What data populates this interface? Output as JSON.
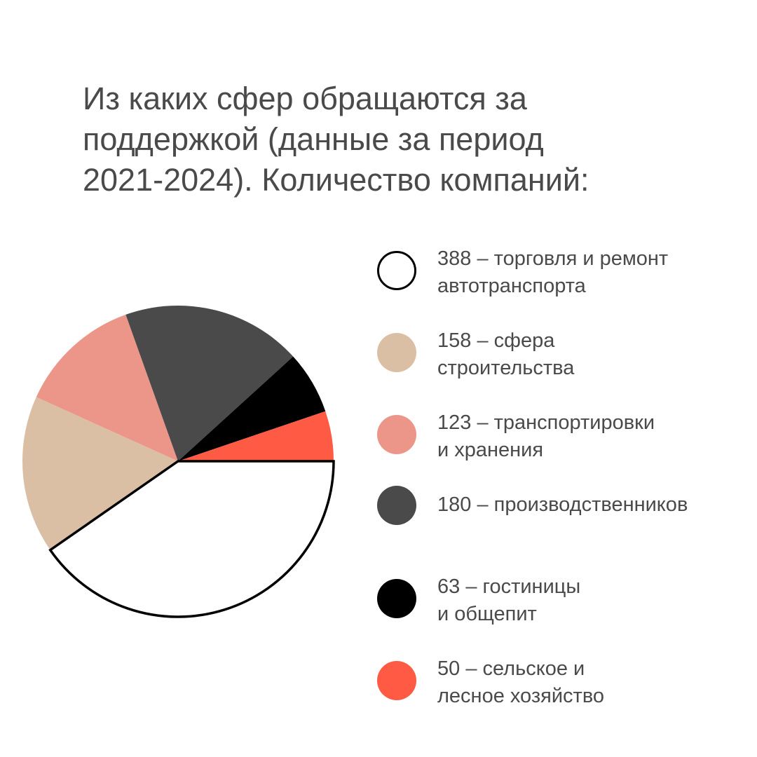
{
  "chart_data": {
    "type": "pie",
    "title_lines": [
      "Из каких сфер обращаются за",
      "поддержкой (данные за период",
      "2021-2024). Количество компаний:"
    ],
    "slices": [
      {
        "value": 388,
        "label_lines": [
          "388 – торговля и ремонт",
          "автотранспорта"
        ],
        "color": "#ffffff",
        "outline": "#000000"
      },
      {
        "value": 158,
        "label_lines": [
          "158 – сфера",
          "строительства"
        ],
        "color": "#dbbfa5"
      },
      {
        "value": 123,
        "label_lines": [
          "123 – транспортировки",
          "и хранения"
        ],
        "color": "#ec968a"
      },
      {
        "value": 180,
        "label_lines": [
          "180 – производственников"
        ],
        "color": "#4a4a4a"
      },
      {
        "value": 63,
        "label_lines": [
          "63 – гостиницы",
          "и общепит"
        ],
        "color": "#000000"
      },
      {
        "value": 50,
        "label_lines": [
          "50 – сельское и",
          "лесное хозяйство"
        ],
        "color": "#ff5a44"
      }
    ],
    "start_direction": "east",
    "rotation": "clockwise",
    "legend_position": "right"
  }
}
